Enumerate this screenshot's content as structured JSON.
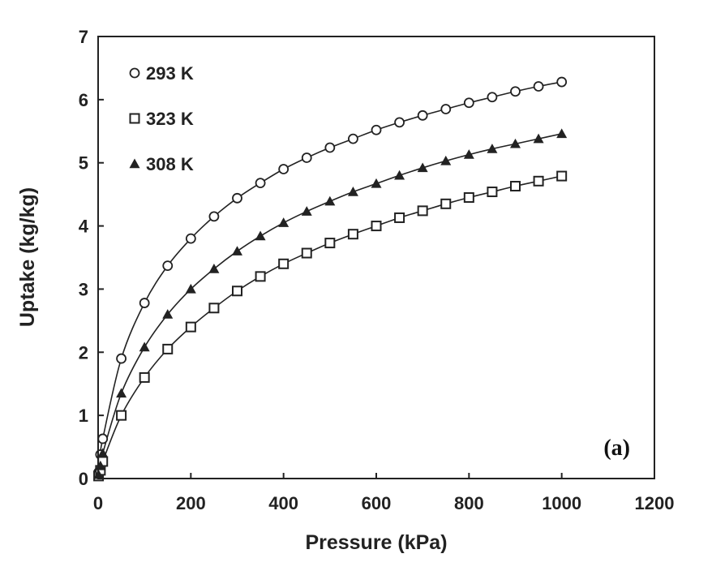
{
  "chart_data": {
    "type": "scatter",
    "xlabel": "Pressure (kPa)",
    "ylabel": "Uptake (kg/kg)",
    "xlim": [
      0,
      1200
    ],
    "ylim": [
      0,
      7
    ],
    "xticks": [
      "0",
      "200",
      "400",
      "600",
      "800",
      "1000",
      "1200"
    ],
    "yticks": [
      "0",
      "1",
      "2",
      "3",
      "4",
      "5",
      "6",
      "7"
    ],
    "grid": false,
    "legend_placement": "top-left",
    "annotation": "(a)",
    "fit_curves": true,
    "series": [
      {
        "name": "293 K",
        "marker": "open-circle",
        "x": [
          1,
          5,
          10,
          50,
          100,
          150,
          200,
          250,
          300,
          350,
          400,
          450,
          500,
          550,
          600,
          650,
          700,
          750,
          800,
          850,
          900,
          950,
          1000
        ],
        "y": [
          0.1,
          0.38,
          0.63,
          1.9,
          2.78,
          3.37,
          3.8,
          4.15,
          4.44,
          4.68,
          4.9,
          5.08,
          5.24,
          5.38,
          5.52,
          5.64,
          5.75,
          5.85,
          5.95,
          6.04,
          6.13,
          6.21,
          6.28
        ]
      },
      {
        "name": "323 K",
        "marker": "open-square",
        "x": [
          1,
          5,
          10,
          50,
          100,
          150,
          200,
          250,
          300,
          350,
          400,
          450,
          500,
          550,
          600,
          650,
          700,
          750,
          800,
          850,
          900,
          950,
          1000
        ],
        "y": [
          0.04,
          0.13,
          0.27,
          1.0,
          1.6,
          2.05,
          2.4,
          2.7,
          2.97,
          3.2,
          3.4,
          3.57,
          3.73,
          3.87,
          4.0,
          4.13,
          4.24,
          4.35,
          4.45,
          4.54,
          4.63,
          4.71,
          4.79
        ]
      },
      {
        "name": "308 K",
        "marker": "filled-triangle",
        "x": [
          1,
          5,
          10,
          50,
          100,
          150,
          200,
          250,
          300,
          350,
          400,
          450,
          500,
          550,
          600,
          650,
          700,
          750,
          800,
          850,
          900,
          950,
          1000
        ],
        "y": [
          0.06,
          0.2,
          0.4,
          1.35,
          2.08,
          2.6,
          3.0,
          3.32,
          3.6,
          3.84,
          4.05,
          4.23,
          4.39,
          4.54,
          4.67,
          4.8,
          4.92,
          5.03,
          5.13,
          5.22,
          5.3,
          5.38,
          5.46
        ]
      }
    ]
  }
}
